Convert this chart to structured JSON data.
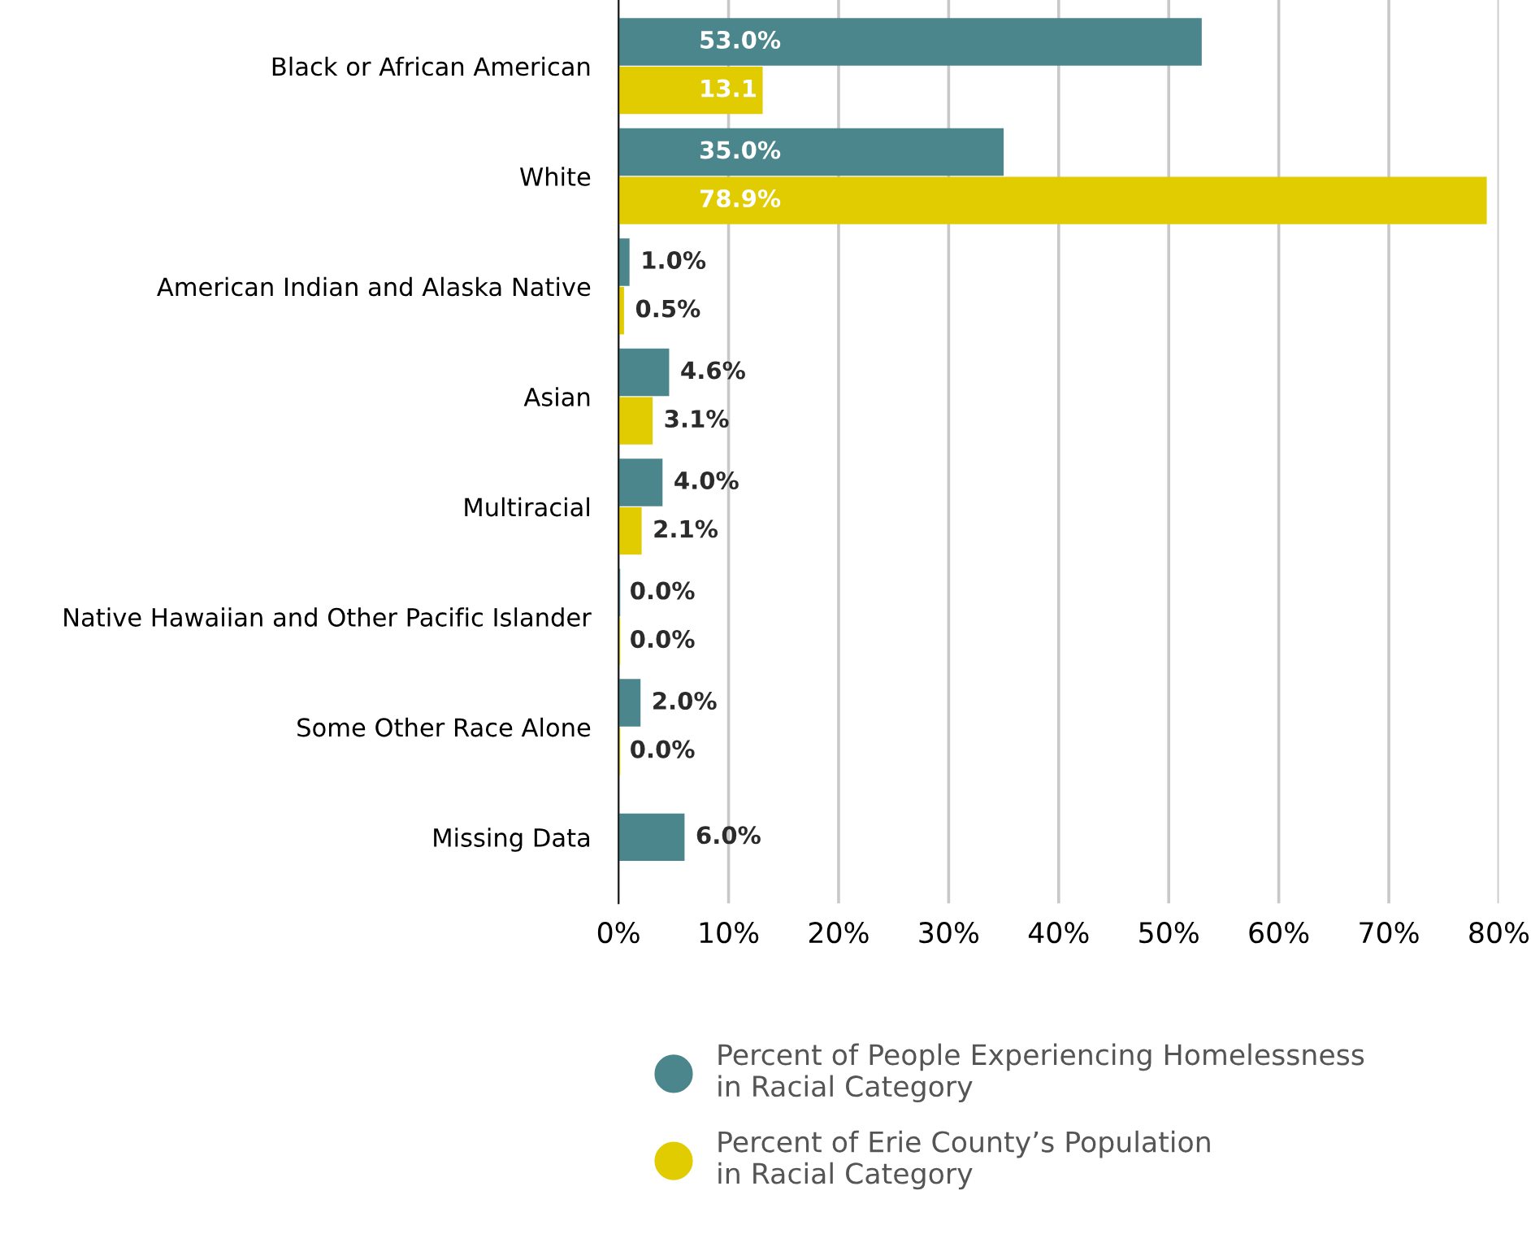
{
  "chart_data": {
    "type": "bar",
    "orientation": "horizontal",
    "categories": [
      "Black or African American",
      "White",
      "American Indian and Alaska Native",
      "Asian",
      "Multiracial",
      "Native Hawaiian and Other Pacific Islander",
      "Some Other Race Alone",
      "Missing Data"
    ],
    "series": [
      {
        "name": "Percent of People Experiencing Homelessness\nin Racial Category",
        "color": "#4a868c",
        "values": [
          53.0,
          35.0,
          1.0,
          4.6,
          4.0,
          0.0,
          2.0,
          6.0
        ],
        "value_labels": [
          "53.0%",
          "35.0%",
          "1.0%",
          "4.6%",
          "4.0%",
          "0.0%",
          "2.0%",
          "6.0%"
        ]
      },
      {
        "name": "Percent of Erie County’s Population\nin Racial Category",
        "color": "#e0cc00",
        "values": [
          13.1,
          78.9,
          0.5,
          3.1,
          2.1,
          0.0,
          0.0,
          null
        ],
        "value_labels": [
          "13.1",
          "78.9%",
          "0.5%",
          "3.1%",
          "2.1%",
          "0.0%",
          "0.0%",
          null
        ]
      }
    ],
    "xlim": [
      0,
      80
    ],
    "xticks": [
      {
        "value": 0,
        "label": "0%"
      },
      {
        "value": 10,
        "label": "10%"
      },
      {
        "value": 20,
        "label": "20%"
      },
      {
        "value": 30,
        "label": "30%"
      },
      {
        "value": 40,
        "label": "40%"
      },
      {
        "value": 50,
        "label": "50%"
      },
      {
        "value": 60,
        "label": "60%"
      },
      {
        "value": 70,
        "label": "70%"
      },
      {
        "value": 80,
        "label": "80%"
      }
    ],
    "grid": "x",
    "legend": "bottom",
    "marker": "circle"
  }
}
